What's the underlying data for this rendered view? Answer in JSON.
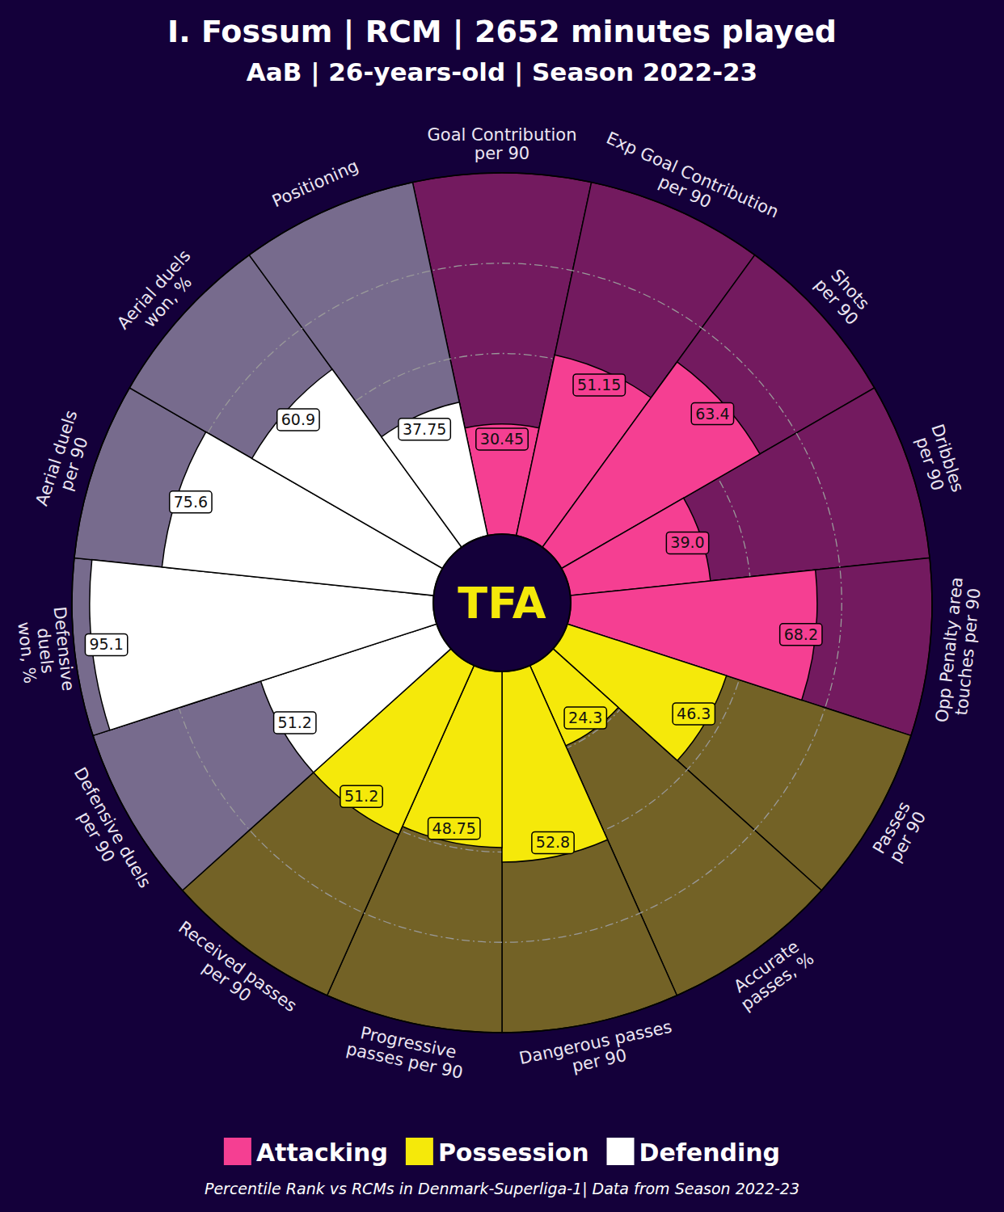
{
  "chart_data": {
    "type": "pizza",
    "title": "I. Fossum | RCM | 2652 minutes played",
    "subtitle": "AaB | 26-years-old | Season 2022-23",
    "annotations": [
      "TFA"
    ],
    "caption": "Percentile Rank vs RCMs in Denmark-Superliga-1| Data from Season 2022-23",
    "categories": [
      "Goal Contribution\nper 90",
      "Exp Goal Contribution\nper 90",
      "Shots\nper 90",
      "Dribbles\nper 90",
      "Opp Penalty area\ntouches per 90",
      "Passes\nper 90",
      "Accurate\npasses, %",
      "Dangerous passes\nper 90",
      "Progressive\npasses per 90",
      "Received passes\nper 90",
      "Defensive duels\nper 90",
      "Defensive\nduels\nwon, %",
      "Aerial duels\nper 90",
      "Aerial duels\nwon, %",
      "Positioning"
    ],
    "series": [
      {
        "name": "Attacking",
        "color": "#f53f92",
        "values": [
          30.45,
          51.15,
          63.4,
          39.0,
          68.2,
          null,
          null,
          null,
          null,
          null,
          null,
          null,
          null,
          null,
          null
        ],
        "value_labels": [
          "30.45",
          "51.15",
          "63.4",
          "39.0",
          "68.2",
          null,
          null,
          null,
          null,
          null,
          null,
          null,
          null,
          null,
          null
        ]
      },
      {
        "name": "Possession",
        "color": "#f5e90a",
        "values": [
          null,
          null,
          null,
          null,
          null,
          46.3,
          24.3,
          52.8,
          48.75,
          51.2,
          null,
          null,
          null,
          null,
          null
        ],
        "value_labels": [
          null,
          null,
          null,
          null,
          null,
          "46.3",
          "24.3",
          "52.8",
          "48.75",
          "51.2",
          null,
          null,
          null,
          null,
          null
        ]
      },
      {
        "name": "Defending",
        "color": "#ffffff",
        "values": [
          null,
          null,
          null,
          null,
          null,
          null,
          null,
          null,
          null,
          null,
          51.2,
          95.1,
          75.6,
          60.9,
          37.75
        ],
        "value_labels": [
          null,
          null,
          null,
          null,
          null,
          null,
          null,
          null,
          null,
          null,
          "51.2",
          "95.1",
          "75.6",
          "60.9",
          "37.75"
        ]
      }
    ],
    "ylim": [
      0,
      100
    ],
    "yticks": [
      25,
      50,
      75
    ],
    "grid": true,
    "tick_labels": false,
    "data_labels": true,
    "legend": "bottom"
  }
}
